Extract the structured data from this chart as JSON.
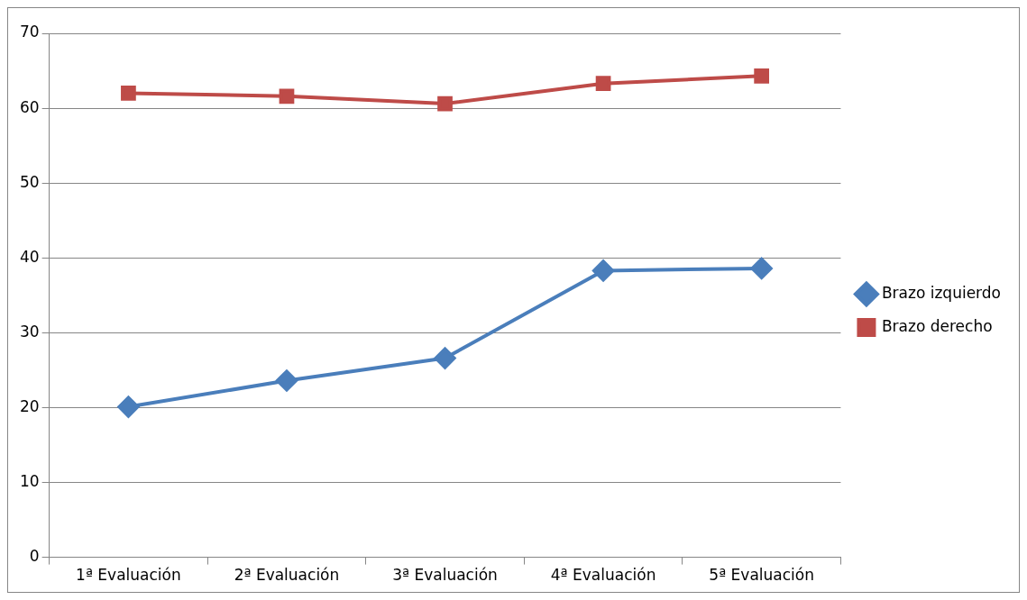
{
  "chart_data": {
    "type": "line",
    "categories": [
      "1ª Evaluación",
      "2ª Evaluación",
      "3ª Evaluación",
      "4ª Evaluación",
      "5ª Evaluación"
    ],
    "series": [
      {
        "name": "Brazo izquierdo",
        "color": "#4a7ebb",
        "marker": "diamond",
        "values": [
          20.1,
          23.6,
          26.6,
          38.3,
          38.6
        ]
      },
      {
        "name": "Brazo derecho",
        "color": "#be4b48",
        "marker": "square",
        "values": [
          62,
          61.6,
          60.6,
          63.3,
          64.3
        ]
      }
    ],
    "ylim": [
      0,
      70
    ],
    "yticks": [
      0,
      10,
      20,
      30,
      40,
      50,
      60,
      70
    ],
    "grid": "y",
    "legend": "right",
    "line_style": "solid"
  }
}
